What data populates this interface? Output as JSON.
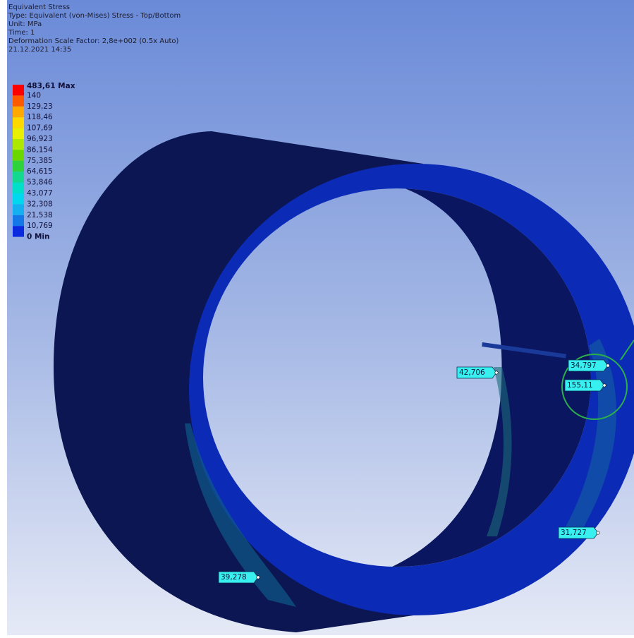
{
  "header": {
    "lines": [
      "Equivalent Stress",
      "Type: Equivalent (von-Mises) Stress - Top/Bottom",
      "Unit: MPa",
      "Time: 1",
      "Deformation Scale Factor: 2,8e+002 (0.5x Auto)",
      "21.12.2021 14:35"
    ]
  },
  "legend": {
    "labels": [
      "483,61 Max",
      "140",
      "129,23",
      "118,46",
      "107,69",
      "96,923",
      "86,154",
      "75,385",
      "64,615",
      "53,846",
      "43,077",
      "32,308",
      "21,538",
      "10,769",
      "0 Min"
    ],
    "band_colors": [
      "#ff0000",
      "#ff5a00",
      "#ffa800",
      "#ffd800",
      "#e8f000",
      "#aee800",
      "#6ad800",
      "#2ed23a",
      "#12d890",
      "#00e0c8",
      "#00d8f0",
      "#14b0f0",
      "#1478e8",
      "#0a2ae0"
    ]
  },
  "probes": [
    "42,706",
    "34,797",
    "155,11",
    "31,727",
    "39,278"
  ]
}
